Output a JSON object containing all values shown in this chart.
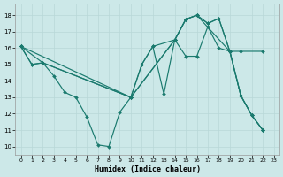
{
  "bg_color": "#cce8e8",
  "line_color": "#1a7a6e",
  "grid_color": "#b8d8d8",
  "xlabel": "Humidex (Indice chaleur)",
  "xlim": [
    -0.5,
    23.5
  ],
  "ylim": [
    9.5,
    18.7
  ],
  "xticks": [
    0,
    1,
    2,
    3,
    4,
    5,
    6,
    7,
    8,
    9,
    10,
    11,
    12,
    13,
    14,
    15,
    16,
    17,
    18,
    19,
    20,
    21,
    22,
    23
  ],
  "yticks": [
    10,
    11,
    12,
    13,
    14,
    15,
    16,
    17,
    18
  ],
  "series": [
    {
      "x": [
        0,
        1,
        2,
        3,
        4,
        5,
        6,
        7,
        8,
        9,
        10,
        11,
        12,
        13,
        14,
        15,
        16,
        17,
        18,
        19,
        20,
        21,
        22
      ],
      "y": [
        16.1,
        15.0,
        15.1,
        14.3,
        13.3,
        13.0,
        11.8,
        10.1,
        10.0,
        12.1,
        13.0,
        15.0,
        16.1,
        13.2,
        16.5,
        17.75,
        18.0,
        17.5,
        17.8,
        15.8,
        13.1,
        11.9,
        11.0
      ]
    },
    {
      "x": [
        0,
        2,
        10,
        14,
        15,
        16,
        17,
        18,
        19,
        20,
        22
      ],
      "y": [
        16.1,
        15.1,
        13.0,
        16.5,
        15.5,
        15.5,
        17.3,
        16.0,
        15.8,
        15.8,
        15.8
      ]
    },
    {
      "x": [
        0,
        1,
        2,
        10,
        11,
        12,
        14,
        15,
        16,
        17,
        18,
        19,
        20,
        21,
        22
      ],
      "y": [
        16.1,
        15.0,
        15.1,
        13.0,
        15.0,
        16.1,
        16.5,
        17.75,
        18.0,
        17.5,
        17.8,
        15.8,
        13.1,
        11.9,
        11.0
      ]
    },
    {
      "x": [
        0,
        10,
        14,
        15,
        16,
        19,
        20,
        21,
        22
      ],
      "y": [
        16.1,
        13.0,
        16.5,
        17.75,
        18.0,
        15.8,
        13.1,
        11.9,
        11.0
      ]
    }
  ]
}
